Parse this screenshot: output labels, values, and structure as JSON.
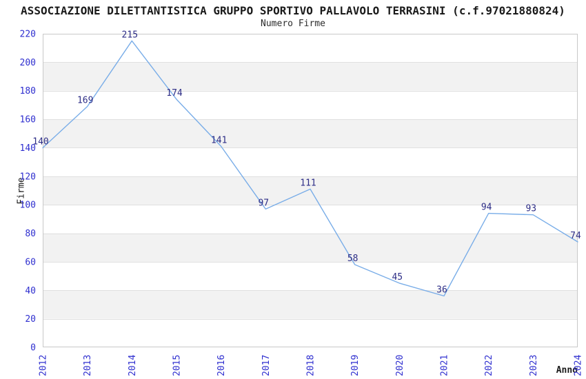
{
  "header": {
    "title": "ASSOCIAZIONE DILETTANTISTICA GRUPPO SPORTIVO PALLAVOLO TERRASINI (c.f.97021880824)",
    "subtitle": "Numero Firme"
  },
  "chart_data": {
    "type": "line",
    "title": "ASSOCIAZIONE DILETTANTISTICA GRUPPO SPORTIVO PALLAVOLO TERRASINI (c.f.97021880824)",
    "subtitle": "Numero Firme",
    "x": [
      2012,
      2013,
      2014,
      2015,
      2016,
      2017,
      2018,
      2019,
      2020,
      2021,
      2022,
      2023,
      2024
    ],
    "values": [
      140,
      169,
      215,
      174,
      141,
      97,
      111,
      58,
      45,
      36,
      94,
      93,
      74
    ],
    "xlabel": "Anno",
    "ylabel": "Firme",
    "ylim": [
      0,
      220
    ],
    "ytick_step": 20,
    "grid": "horizontal-bands-alternating",
    "legend": "none",
    "colors": {
      "line": "#79ade8",
      "tick_label": "#2e2ecf",
      "data_label": "#2d2d86",
      "band": "#f2f2f2",
      "gridline": "#e0e0e0",
      "border": "#c8c8c8",
      "text": "#1a1a1a",
      "background": "#ffffff"
    }
  }
}
